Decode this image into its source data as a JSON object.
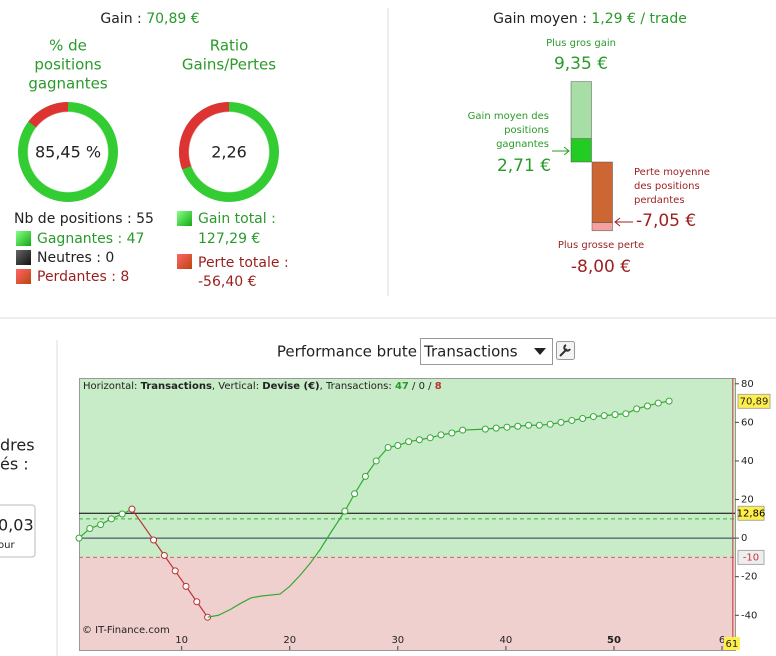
{
  "gain": {
    "label": "Gain : ",
    "value": "70,89 €"
  },
  "win_rate": {
    "title": [
      "% de",
      "positions",
      "gagnantes"
    ],
    "value": 85.45,
    "label": "85,45 %"
  },
  "ratio": {
    "title": [
      "Ratio",
      "Gains/Pertes"
    ],
    "label": "2,26"
  },
  "counts": {
    "total": "Nb de positions : 55",
    "wins": "Gagnantes : 47",
    "neutral": "Neutres : 0",
    "losses": "Perdantes : 8"
  },
  "totals": {
    "gain_title": "Gain total :",
    "gain": {
      "value": 127.29,
      "label": "127,29 €"
    },
    "loss_title": "Perte totale :",
    "loss": {
      "value": -56.4,
      "label": "-56,40 €"
    }
  },
  "average": {
    "label": "Gain moyen : ",
    "value": "1,29 € / trade",
    "max_gain": {
      "title": "Plus gros gain",
      "value": 9.35,
      "label": "9,35 €"
    },
    "avg_win": {
      "title": [
        "Gain moyen des",
        "positions",
        "gagnantes"
      ],
      "value": 2.71,
      "label": "2,71 €"
    },
    "avg_loss": {
      "title": [
        "Perte moyenne",
        "des positions",
        "perdantes"
      ],
      "value": -7.05,
      "label": "-7,05 €"
    },
    "max_loss": {
      "title": "Plus grosse perte",
      "value": -8,
      "label": "-8,00 €"
    }
  },
  "sidebar": {
    "lines": [
      "dres",
      "és :"
    ],
    "input": "0,03",
    "hint": "our"
  },
  "chart": {
    "type": "line",
    "title": "Performance brute",
    "select": "Transactions",
    "info": [
      "Horizontal: ",
      "Transactions",
      ", Vertical: ",
      "Devise (€)",
      ", Transactions: ",
      "47",
      " / ",
      "0",
      " / ",
      "8"
    ],
    "credit": "© IT-Finance.com",
    "xlim": [
      0.5,
      61.2
    ],
    "ylim": [
      -58,
      83
    ],
    "yticks": [
      80,
      60,
      40,
      20,
      0,
      -20,
      -40
    ],
    "xticks": [
      10,
      20,
      30,
      40,
      50,
      {
        "value": 60,
        "label": "6"
      }
    ],
    "series": [
      {
        "color": "#3a3",
        "markers": true,
        "x": [
          0.5,
          1.5,
          2.5,
          3.5,
          4.5,
          5.4
        ],
        "values": [
          0,
          5,
          7,
          10,
          12.5,
          15
        ]
      },
      {
        "color": "#b33",
        "markers": true,
        "x": [
          5.4,
          7.4,
          8.4,
          9.4,
          10.4,
          11.4,
          12.4
        ],
        "values": [
          15,
          -1,
          -9,
          -17,
          -25,
          -33,
          -41
        ]
      },
      {
        "color": "#3a3",
        "markers": false,
        "x": [
          12.4,
          13.4,
          14.5,
          15.4,
          16.4,
          17.4,
          19.1,
          20,
          21,
          21.9,
          22.8,
          23.7,
          25.1
        ],
        "values": [
          -41,
          -40,
          -37,
          -34,
          -31,
          -30,
          -29,
          -25,
          -19,
          -13,
          -6,
          2,
          14
        ]
      },
      {
        "color": "#3a3",
        "markers": true,
        "x": [
          25.1,
          26,
          27,
          28,
          29.1,
          30,
          31,
          32,
          33,
          34,
          35,
          36,
          38.1,
          39.1,
          40.1,
          41.1,
          42.1,
          43.1,
          44.1,
          45.1,
          46.1,
          47.1,
          48.1,
          49.1,
          50.1,
          51.1,
          52.1,
          53.1,
          54.1,
          55.1
        ],
        "values": [
          14,
          23,
          32,
          40,
          47,
          48,
          50,
          51,
          52,
          53.5,
          54.5,
          56,
          56.5,
          57,
          57.5,
          58,
          58.5,
          58.5,
          59,
          60,
          61,
          62,
          63,
          63.5,
          64,
          64.5,
          67,
          68.5,
          70,
          71
        ]
      }
    ],
    "levels": [
      {
        "value": 12.86,
        "label": "12,86",
        "color": "#000",
        "dashed": false
      },
      {
        "value": 10,
        "color": "#3b3",
        "dashed": true
      },
      {
        "value": 0,
        "color": "#336",
        "dashed": false
      },
      {
        "value": -10,
        "label": "-10",
        "color": "#c66",
        "dashed": true
      }
    ],
    "last": {
      "value": 70.89,
      "label": "70,89"
    },
    "x_marker": {
      "value": 61,
      "label": "61"
    }
  }
}
